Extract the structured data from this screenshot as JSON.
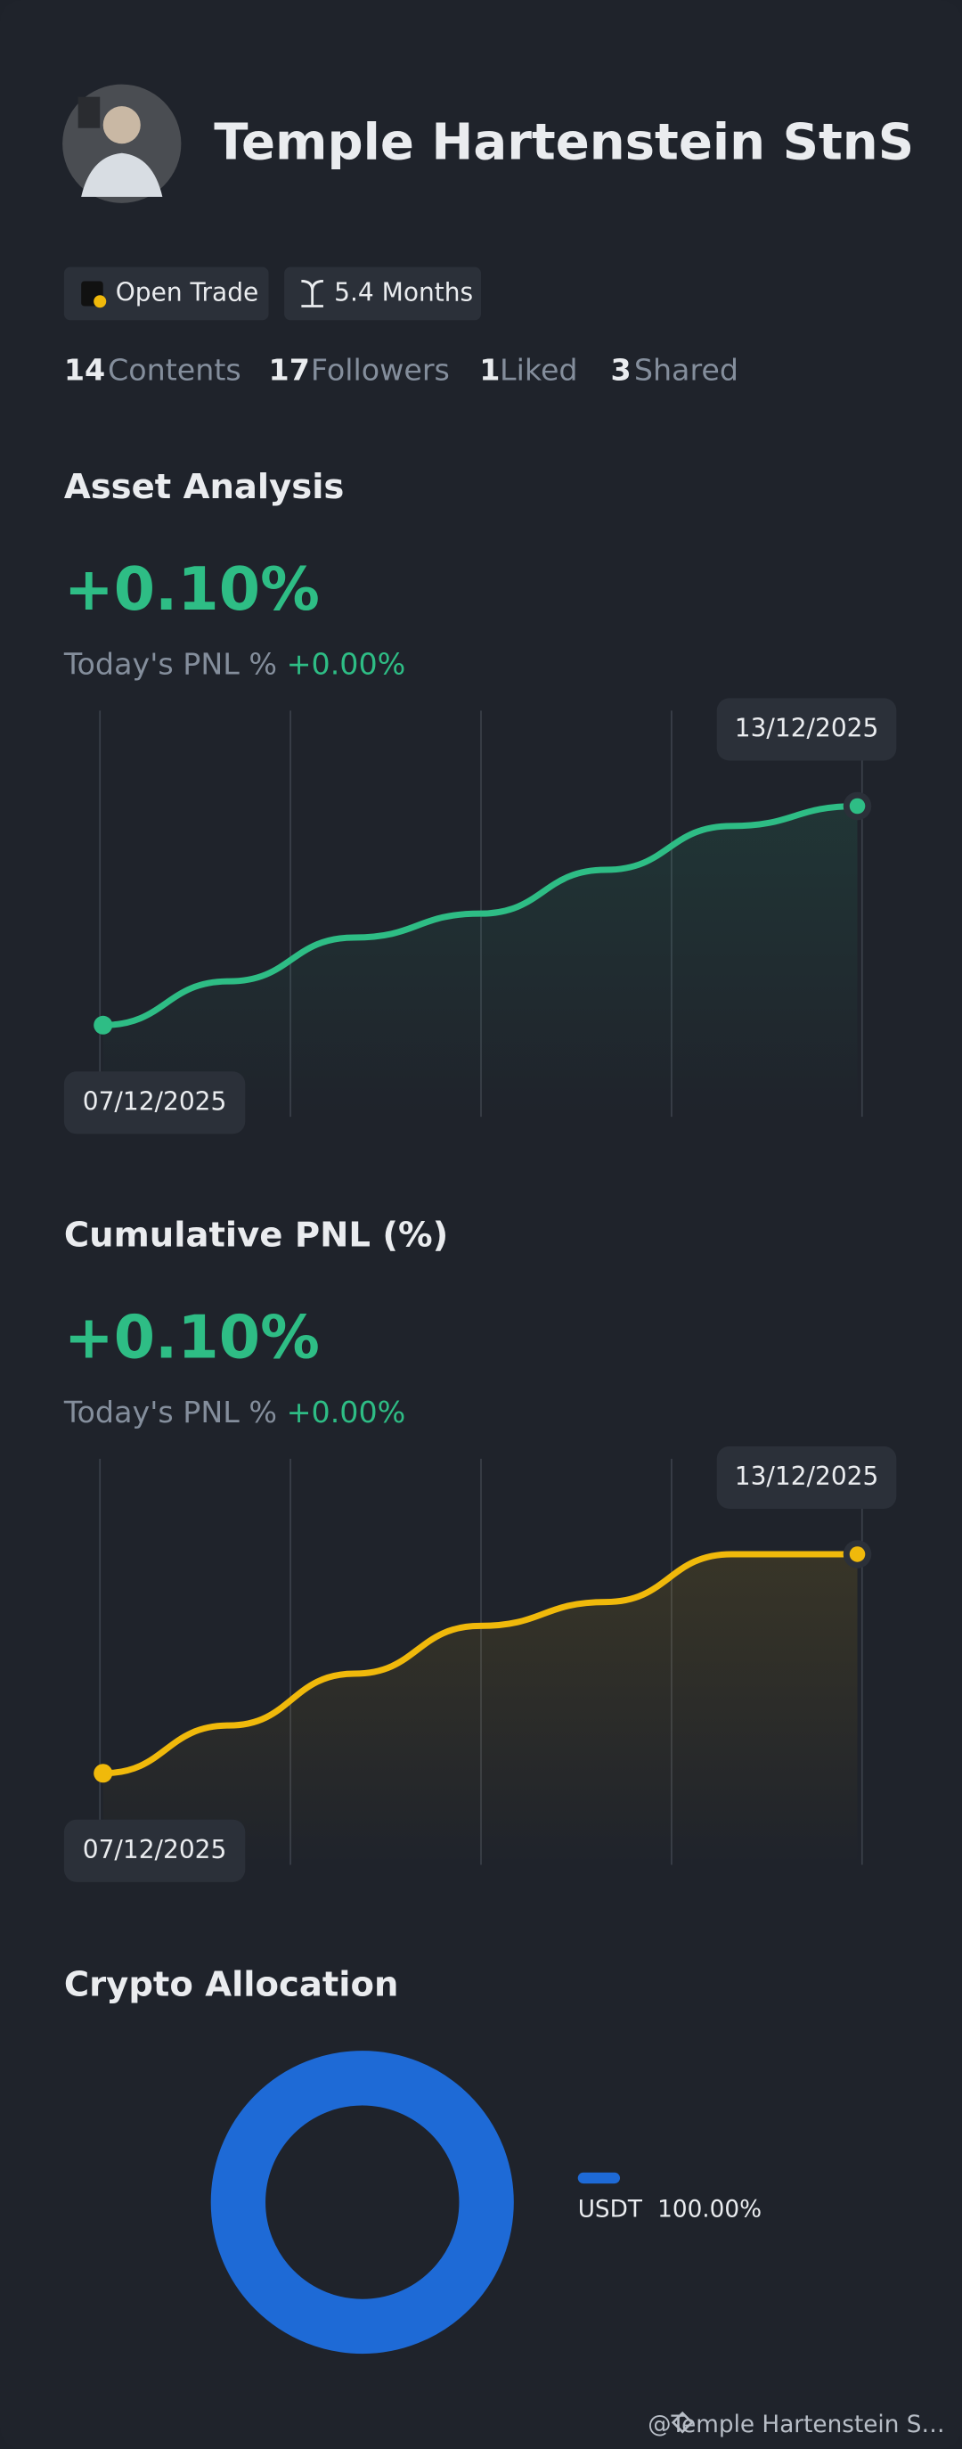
{
  "profile": {
    "name": "Temple Hartenstein StnS",
    "badges": [
      "Open Trade",
      "5.4 Months"
    ],
    "stats": [
      {
        "value": 14,
        "label": "Contents"
      },
      {
        "value": 17,
        "label": "Followers"
      },
      {
        "value": 1,
        "label": "Liked"
      },
      {
        "value": 3,
        "label": "Shared"
      }
    ]
  },
  "chart_data": [
    {
      "type": "line",
      "title": "Asset Analysis",
      "headline": "+0.10%",
      "subtitle_label": "Today's PNL %",
      "subtitle_value": "+0.00%",
      "categories": [
        "07/12/2025",
        null,
        null,
        null,
        null,
        null,
        "13/12/2025"
      ],
      "series": [
        {
          "color": "#2ebd85",
          "values": [
            23,
            34,
            45,
            51,
            62,
            73,
            78
          ]
        }
      ],
      "ylim": [
        0,
        100
      ]
    },
    {
      "type": "line",
      "title": "Cumulative PNL (%)",
      "headline": "+0.10%",
      "subtitle_label": "Today's PNL %",
      "subtitle_value": "+0.00%",
      "categories": [
        "07/12/2025",
        null,
        null,
        null,
        null,
        null,
        "13/12/2025"
      ],
      "series": [
        {
          "color": "#f0b90b",
          "values": [
            23,
            35,
            48,
            60,
            66,
            78,
            78
          ]
        }
      ],
      "ylim": [
        0,
        100
      ]
    },
    {
      "type": "donut",
      "title": "Crypto Allocation",
      "categories": [
        "USDT"
      ],
      "values": [
        100
      ],
      "value_labels": [
        "100.00%"
      ],
      "colors": [
        "#1e6ad6"
      ]
    }
  ],
  "footer": "@Temple Hartenstein S…"
}
